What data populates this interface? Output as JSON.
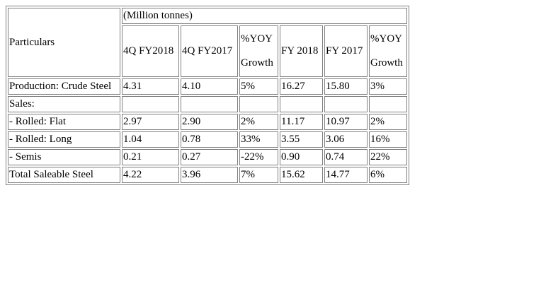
{
  "table": {
    "particulars_label": "Particulars",
    "unit_label": "(Million tonnes)",
    "columns": {
      "q4_fy2018": "4Q FY2018",
      "q4_fy2017": "4Q FY2017",
      "yoy_quarter_line1": "%YOY",
      "yoy_quarter_line2": "Growth",
      "fy2018": "FY 2018",
      "fy2017": "FY 2017",
      "yoy_annual_line1": "%YOY",
      "yoy_annual_line2": "Growth"
    },
    "rows": [
      {
        "label": "Production: Crude Steel",
        "q4_fy2018": "4.31",
        "q4_fy2017": "4.10",
        "yoy_quarter": "5%",
        "fy2018": "16.27",
        "fy2017": "15.80",
        "yoy_annual": "3%"
      },
      {
        "label": "Sales:",
        "q4_fy2018": "",
        "q4_fy2017": "",
        "yoy_quarter": "",
        "fy2018": "",
        "fy2017": "",
        "yoy_annual": ""
      },
      {
        "label": "- Rolled: Flat",
        "q4_fy2018": "2.97",
        "q4_fy2017": "2.90",
        "yoy_quarter": "2%",
        "fy2018": "11.17",
        "fy2017": "10.97",
        "yoy_annual": "2%"
      },
      {
        "label": "- Rolled: Long",
        "q4_fy2018": "1.04",
        "q4_fy2017": "0.78",
        "yoy_quarter": "33%",
        "fy2018": "3.55",
        "fy2017": "3.06",
        "yoy_annual": "16%"
      },
      {
        "label": "- Semis",
        "q4_fy2018": "0.21",
        "q4_fy2017": "0.27",
        "yoy_quarter": "-22%",
        "fy2018": "0.90",
        "fy2017": "0.74",
        "yoy_annual": "22%"
      },
      {
        "label": "Total Saleable Steel",
        "q4_fy2018": "4.22",
        "q4_fy2017": "3.96",
        "yoy_quarter": "7%",
        "fy2018": "15.62",
        "fy2017": "14.77",
        "yoy_annual": "6%"
      }
    ]
  }
}
